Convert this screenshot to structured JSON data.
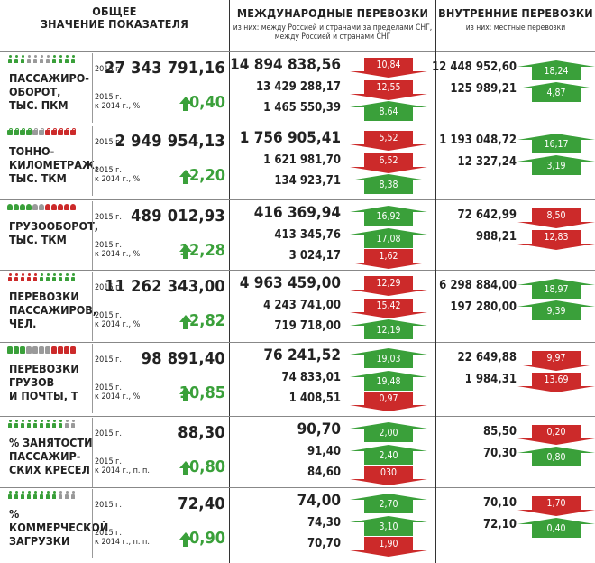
{
  "header": {
    "col1_line1": "ОБЩЕЕ",
    "col1_line2": "ЗНАЧЕНИЕ ПОКАЗАТЕЛЯ",
    "col2_title": "МЕЖДУНАРОДНЫЕ ПЕРЕВОЗКИ",
    "col2_sub1": "из них: между Россией и странами за пределами СНГ,",
    "col2_sub2": "между Россией и  странами  СНГ",
    "col3_title": "ВНУТРЕННИЕ ПЕРЕВОЗКИ",
    "col3_sub": "из них: местные  перевозки"
  },
  "colors": {
    "green": "#3aa03a",
    "red": "#cc2a2a",
    "grey": "#9a9a9a"
  },
  "rows": [
    {
      "label1": "ПАССАЖИРО-",
      "label2": "ОБОРОТ,",
      "label3": "тыс. пкм",
      "icons": "person",
      "icon_colors": [
        "g",
        "g",
        "g",
        "x",
        "x",
        "x",
        "x",
        "g",
        "g",
        "g",
        "g"
      ],
      "year": "2015 г.",
      "total": "27 343 791,16",
      "cmp1": "2015 г.",
      "cmp2": "к 2014 г., %",
      "change": "0,40",
      "intl": [
        "14 894 838,56",
        "13 429 288,17",
        "1 465 550,39"
      ],
      "intl_badges": [
        {
          "v": "10,84",
          "d": "down"
        },
        {
          "v": "12,55",
          "d": "down"
        },
        {
          "v": "8,64",
          "d": "up"
        }
      ],
      "dom": [
        "12 448 952,60",
        "125 989,21"
      ],
      "dom_badges": [
        {
          "v": "18,24",
          "d": "up"
        },
        {
          "v": "4,87",
          "d": "up"
        }
      ]
    },
    {
      "label1": "ТОННО-",
      "label2": "КИЛОМЕТРАЖ,",
      "label3": "тыс. ткм",
      "icons": "weight",
      "icon_colors": [
        "g",
        "g",
        "g",
        "g",
        "x",
        "x",
        "r",
        "r",
        "r",
        "r",
        "r"
      ],
      "year": "2015 г.",
      "total": "2 949 954,13",
      "cmp1": "2015 г.",
      "cmp2": "к 2014 г., %",
      "change": "2,20",
      "intl": [
        "1 756 905,41",
        "1 621 981,70",
        "134 923,71"
      ],
      "intl_badges": [
        {
          "v": "5,52",
          "d": "down"
        },
        {
          "v": "6,52",
          "d": "down"
        },
        {
          "v": "8,38",
          "d": "up"
        }
      ],
      "dom": [
        "1 193 048,72",
        "12 327,24"
      ],
      "dom_badges": [
        {
          "v": "16,17",
          "d": "up"
        },
        {
          "v": "3,19",
          "d": "up"
        }
      ]
    },
    {
      "label1": "ГРУЗООБОРОТ,",
      "label2": "тыс. ткм",
      "label3": "",
      "icons": "pkg",
      "icon_colors": [
        "g",
        "g",
        "g",
        "g",
        "x",
        "x",
        "r",
        "r",
        "r",
        "r",
        "r"
      ],
      "year": "2015 г.",
      "total": "489 012,93",
      "cmp1": "2015 г.",
      "cmp2": "к 2014 г., %",
      "change": "12,28",
      "intl": [
        "416 369,94",
        "413 345,76",
        "3 024,17"
      ],
      "intl_badges": [
        {
          "v": "16,92",
          "d": "up"
        },
        {
          "v": "17,08",
          "d": "up"
        },
        {
          "v": "1,62",
          "d": "down"
        }
      ],
      "dom": [
        "72 642,99",
        "988,21"
      ],
      "dom_badges": [
        {
          "v": "8,50",
          "d": "down"
        },
        {
          "v": "12,83",
          "d": "down"
        }
      ]
    },
    {
      "label1": "ПЕРЕВОЗКИ",
      "label2": "ПАССАЖИРОВ,",
      "label3": "чел.",
      "icons": "person",
      "icon_colors": [
        "r",
        "r",
        "r",
        "r",
        "r",
        "g",
        "g",
        "g",
        "g",
        "g",
        "g"
      ],
      "year": "2015 г.",
      "total": "11 262 343,00",
      "cmp1": "2015 г.",
      "cmp2": "к 2014 г., %",
      "change": "2,82",
      "intl": [
        "4 963 459,00",
        "4 243 741,00",
        "719 718,00"
      ],
      "intl_badges": [
        {
          "v": "12,29",
          "d": "down"
        },
        {
          "v": "15,42",
          "d": "down"
        },
        {
          "v": "12,19",
          "d": "up"
        }
      ],
      "dom": [
        "6 298 884,00",
        "197 280,00"
      ],
      "dom_badges": [
        {
          "v": "18,97",
          "d": "up"
        },
        {
          "v": "9,39",
          "d": "up"
        }
      ]
    },
    {
      "label1": "ПЕРЕВОЗКИ",
      "label2": "ГРУЗОВ",
      "label3": "И ПОЧТЫ, т",
      "icons": "seat",
      "icon_colors": [
        "g",
        "g",
        "g",
        "x",
        "x",
        "x",
        "x",
        "r",
        "r",
        "r",
        "r"
      ],
      "year": "2015 г.",
      "total": "98 891,40",
      "cmp1": "2015 г.",
      "cmp2": "к 2014 г., %",
      "change": "10,85",
      "intl": [
        "76 241,52",
        "74 833,01",
        "1 408,51"
      ],
      "intl_badges": [
        {
          "v": "19,03",
          "d": "up"
        },
        {
          "v": "19,48",
          "d": "up"
        },
        {
          "v": "0,97",
          "d": "down"
        }
      ],
      "dom": [
        "22 649,88",
        "1 984,31"
      ],
      "dom_badges": [
        {
          "v": "9,97",
          "d": "down"
        },
        {
          "v": "13,69",
          "d": "down"
        }
      ]
    },
    {
      "label1": "% ЗАНЯТОСТИ",
      "label2": "ПАССАЖИР-",
      "label3": "СКИХ КРЕСЕЛ",
      "icons": "person",
      "icon_colors": [
        "g",
        "g",
        "g",
        "g",
        "g",
        "g",
        "g",
        "g",
        "g",
        "x",
        "x"
      ],
      "year": "2015 г.",
      "total": "88,30",
      "cmp1": "2015 г.",
      "cmp2": "к 2014 г., п. п.",
      "change": "0,80",
      "intl": [
        "90,70",
        "91,40",
        "84,60"
      ],
      "intl_badges": [
        {
          "v": "2,00",
          "d": "up"
        },
        {
          "v": "2,40",
          "d": "up"
        },
        {
          "v": "030",
          "d": "down"
        }
      ],
      "dom": [
        "85,50",
        "70,30"
      ],
      "dom_badges": [
        {
          "v": "0,20",
          "d": "down"
        },
        {
          "v": "0,80",
          "d": "up"
        }
      ]
    },
    {
      "label1": "%",
      "label2": "КОММЕРЧЕСКОЙ",
      "label3": "ЗАГРУЗКИ",
      "icons": "person",
      "icon_colors": [
        "g",
        "g",
        "g",
        "g",
        "g",
        "g",
        "g",
        "g",
        "x",
        "x",
        "x"
      ],
      "year": "2015 г.",
      "total": "72,40",
      "cmp1": "2015 г.",
      "cmp2": "к 2014 г., п. п.",
      "change": "0,90",
      "intl": [
        "74,00",
        "74,30",
        "70,70"
      ],
      "intl_badges": [
        {
          "v": "2,70",
          "d": "up"
        },
        {
          "v": "3,10",
          "d": "up"
        },
        {
          "v": "1,90",
          "d": "down"
        }
      ],
      "dom": [
        "70,10",
        "72,10"
      ],
      "dom_badges": [
        {
          "v": "1,70",
          "d": "down"
        },
        {
          "v": "0,40",
          "d": "up"
        }
      ]
    }
  ]
}
